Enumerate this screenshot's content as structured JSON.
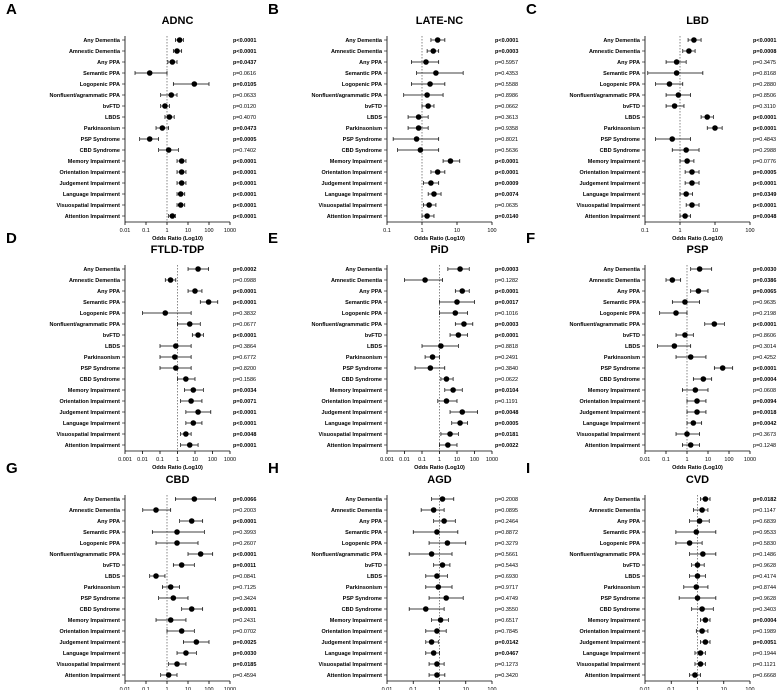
{
  "categories": [
    "Any Dementia",
    "Amnestic Dementia",
    "Any PPA",
    "Semantic PPA",
    "Logopenic PPA",
    "Nonfluent/agrammatic PPA",
    "bvFTD",
    "LBDS",
    "Parkinsonism",
    "PSP Syndrome",
    "CBD Syndrome",
    "Memory Impairment",
    "Orientation Impairment",
    "Judgement Impairment",
    "Language Impairment",
    "Visuospatial Impairment",
    "Attention Impairment"
  ],
  "xlabel": "Odds Ratio (Log10)",
  "chart_data": [
    {
      "type": "scatter",
      "panel_letter": "A",
      "title": "ADNC",
      "xlim": [
        0.01,
        1000
      ],
      "xticks": [
        "0.01",
        "0.1",
        "1",
        "10",
        "100",
        "1000"
      ],
      "or": [
        4,
        3,
        1.8,
        0.15,
        20,
        1.6,
        0.8,
        1.3,
        0.6,
        0.15,
        1.2,
        5,
        5,
        5,
        4.5,
        4.5,
        1.8
      ],
      "lo": [
        2.5,
        2,
        1.1,
        0.03,
        2,
        0.5,
        0.5,
        0.8,
        0.3,
        0.05,
        0.4,
        3,
        3,
        3,
        3,
        3,
        1.2
      ],
      "hi": [
        6,
        5,
        3,
        1,
        100,
        3,
        1.3,
        2.2,
        1.2,
        0.4,
        3.5,
        8,
        8,
        8,
        7,
        7,
        2.5
      ],
      "p": [
        "p<0.0001",
        "p<0.0001",
        "p=0.0437",
        "p=0.0616",
        "p=0.0105",
        "p=0.0633",
        "p=0.0120",
        "p=0.4070",
        "p=0.0473",
        "p=0.0005",
        "p=0.7402",
        "p<0.0001",
        "p<0.0001",
        "p<0.0001",
        "p<0.0001",
        "p<0.0001",
        "p<0.0001"
      ],
      "bold": [
        true,
        true,
        true,
        false,
        true,
        false,
        false,
        false,
        true,
        true,
        false,
        true,
        true,
        true,
        true,
        true,
        true
      ]
    },
    {
      "type": "scatter",
      "panel_letter": "B",
      "title": "LATE-NC",
      "xlim": [
        0.1,
        100
      ],
      "xticks": [
        "0.1",
        "1",
        "10",
        "100"
      ],
      "or": [
        2.8,
        2.1,
        1.3,
        2.5,
        1.7,
        1.4,
        1.5,
        0.8,
        0.8,
        0.7,
        0.9,
        6.5,
        2.8,
        1.8,
        2.2,
        1.6,
        1.4
      ],
      "lo": [
        1.8,
        1.4,
        0.5,
        0.7,
        0.5,
        0.3,
        1.0,
        0.4,
        0.4,
        0.15,
        0.2,
        4,
        1.8,
        1.1,
        1.5,
        1.1,
        1.0
      ],
      "hi": [
        4.5,
        3,
        3,
        15,
        4.5,
        4,
        2.2,
        1.5,
        1.5,
        3,
        3,
        12,
        4.5,
        3,
        3.5,
        2.5,
        2.2
      ],
      "p": [
        "p<0.0001",
        "p=0.0003",
        "p=0.5957",
        "p=0.4353",
        "p=0.5588",
        "p=0.8986",
        "p=0.0662",
        "p=0.3613",
        "p=0.9358",
        "p=0.8021",
        "p=0.5636",
        "p<0.0001",
        "p<0.0001",
        "p=0.0009",
        "p=0.0074",
        "p=0.0635",
        "p=0.0140"
      ],
      "bold": [
        true,
        true,
        false,
        false,
        false,
        false,
        false,
        false,
        false,
        false,
        false,
        true,
        true,
        true,
        true,
        false,
        true
      ]
    },
    {
      "type": "scatter",
      "panel_letter": "C",
      "title": "LBD",
      "xlim": [
        0.1,
        100
      ],
      "xticks": [
        "0.1",
        "1",
        "10",
        "100"
      ],
      "or": [
        2.5,
        1.8,
        0.8,
        0.8,
        0.5,
        0.9,
        0.7,
        6,
        10,
        0.6,
        1.5,
        1.6,
        2.2,
        2.2,
        1.5,
        2.2,
        1.4
      ],
      "lo": [
        1.7,
        1.2,
        0.4,
        0.12,
        0.2,
        0.4,
        0.4,
        4,
        6,
        0.2,
        0.6,
        1.0,
        1.4,
        1.4,
        1.0,
        1.5,
        1.0
      ],
      "hi": [
        4,
        2.7,
        1.5,
        4.5,
        1.2,
        2,
        1.3,
        9,
        16,
        2,
        3.5,
        2.5,
        3.5,
        3.5,
        2.3,
        3.5,
        2.0
      ],
      "p": [
        "p<0.0001",
        "p=0.0008",
        "p=0.3475",
        "p=0.8168",
        "p=0.2880",
        "p=0.8506",
        "p=0.3110",
        "p<0.0001",
        "p<0.0001",
        "p=0.4843",
        "p=0.2988",
        "p=0.0776",
        "p=0.0005",
        "p<0.0001",
        "p=0.0349",
        "p<0.0001",
        "p=0.0048"
      ],
      "bold": [
        true,
        true,
        false,
        false,
        false,
        false,
        false,
        true,
        true,
        false,
        false,
        false,
        true,
        true,
        true,
        true,
        true
      ]
    },
    {
      "type": "scatter",
      "panel_letter": "D",
      "title": "FTLD-TDP",
      "xlim": [
        0.001,
        1000
      ],
      "xticks": [
        "0.001",
        "0.01",
        "0.1",
        "1",
        "10",
        "100",
        "1000"
      ],
      "or": [
        15,
        0.4,
        10,
        60,
        0.2,
        5,
        15,
        0.8,
        0.7,
        0.8,
        3,
        8,
        6,
        15,
        8,
        3,
        5
      ],
      "lo": [
        4,
        0.2,
        4,
        20,
        0.01,
        1,
        7,
        0.1,
        0.1,
        0.1,
        1,
        2.5,
        1.5,
        3,
        3,
        1.5,
        1.5
      ],
      "hi": [
        60,
        0.8,
        25,
        200,
        6,
        20,
        30,
        6,
        6,
        6,
        10,
        30,
        25,
        80,
        25,
        6,
        15
      ],
      "p": [
        "p=0.0002",
        "p=0.0988",
        "p<0.0001",
        "p<0.0001",
        "p=0.3832",
        "p=0.0677",
        "p<0.0001",
        "p=0.3864",
        "p=0.6772",
        "p=0.8200",
        "p=0.1586",
        "p=0.0034",
        "p=0.0071",
        "p<0.0001",
        "p<0.0001",
        "p=0.0048",
        "p=0.0001"
      ],
      "bold": [
        true,
        false,
        true,
        true,
        false,
        false,
        true,
        false,
        false,
        false,
        false,
        true,
        true,
        true,
        true,
        true,
        true
      ]
    },
    {
      "type": "scatter",
      "panel_letter": "E",
      "title": "PiD",
      "xlim": [
        0.001,
        1000
      ],
      "xticks": [
        "0.001",
        "0.01",
        "0.1",
        "1",
        "10",
        "100",
        "1000"
      ],
      "or": [
        15,
        0.15,
        20,
        10,
        8,
        25,
        12,
        1.2,
        0.4,
        0.3,
        2.5,
        6,
        2.5,
        20,
        15,
        4,
        3
      ],
      "lo": [
        3,
        0.01,
        8,
        1,
        1,
        8,
        4,
        0.1,
        0.15,
        0.04,
        1.2,
        2,
        0.8,
        4,
        5,
        1.2,
        1
      ],
      "hi": [
        50,
        1.5,
        50,
        100,
        40,
        80,
        40,
        12,
        1,
        2,
        6,
        20,
        10,
        150,
        40,
        12,
        10
      ],
      "p": [
        "p=0.0003",
        "p=0.1282",
        "p<0.0001",
        "p=0.0017",
        "p=0.1016",
        "p=0.0003",
        "p<0.0001",
        "p=0.8818",
        "p=0.2491",
        "p=0.3840",
        "p=0.0622",
        "p=0.0104",
        "p=0.1191",
        "p=0.0048",
        "p=0.0005",
        "p=0.0181",
        "p=0.0022"
      ],
      "bold": [
        true,
        false,
        true,
        true,
        false,
        true,
        true,
        false,
        false,
        false,
        false,
        true,
        false,
        true,
        true,
        true,
        true
      ]
    },
    {
      "type": "scatter",
      "panel_letter": "F",
      "title": "PSP",
      "xlim": [
        0.01,
        1000
      ],
      "xticks": [
        "0.01",
        "0.1",
        "1",
        "10",
        "100",
        "1000"
      ],
      "or": [
        4,
        0.2,
        3.5,
        0.8,
        0.3,
        20,
        0.8,
        0.25,
        1.5,
        50,
        6,
        2.5,
        3,
        3,
        2,
        1,
        1.5
      ],
      "lo": [
        1.5,
        0.1,
        1.5,
        0.2,
        0.05,
        7,
        0.3,
        0.04,
        0.3,
        20,
        2,
        0.6,
        1,
        1,
        1,
        0.3,
        0.6
      ],
      "hi": [
        15,
        0.5,
        10,
        4,
        1,
        60,
        2,
        1.5,
        8,
        150,
        15,
        10,
        8,
        8,
        5,
        4,
        4
      ],
      "p": [
        "p=0.0030",
        "p=0.0386",
        "p=0.0065",
        "p=0.9635",
        "p=0.2198",
        "p<0.0001",
        "p=0.8606",
        "p=0.3014",
        "p=0.4252",
        "p<0.0001",
        "p=0.0004",
        "p=0.0608",
        "p=0.0094",
        "p=0.0018",
        "p=0.0042",
        "p=0.3673",
        "p=0.1248"
      ],
      "bold": [
        true,
        true,
        true,
        false,
        false,
        true,
        false,
        false,
        false,
        true,
        true,
        false,
        true,
        true,
        true,
        false,
        false
      ]
    },
    {
      "type": "scatter",
      "panel_letter": "G",
      "title": "CBD",
      "xlim": [
        0.01,
        1000
      ],
      "xticks": [
        "0.01",
        "0.1",
        "1",
        "10",
        "100",
        "1000"
      ],
      "or": [
        20,
        0.3,
        15,
        3,
        3,
        40,
        5,
        0.3,
        1.5,
        2,
        15,
        1.5,
        5,
        25,
        8,
        3,
        1.2
      ],
      "lo": [
        2.5,
        0.07,
        4,
        0.2,
        0.3,
        10,
        2,
        0.15,
        0.6,
        0.4,
        5,
        0.3,
        1,
        6,
        3,
        1.2,
        0.5
      ],
      "hi": [
        200,
        1.5,
        50,
        60,
        30,
        150,
        20,
        0.8,
        4,
        10,
        50,
        8,
        20,
        100,
        25,
        8,
        3
      ],
      "p": [
        "p=0.0066",
        "p=0.2003",
        "p<0.0001",
        "p=0.3993",
        "p=0.2607",
        "p<0.0001",
        "p=0.0011",
        "p=0.0841",
        "p=0.7125",
        "p=0.3424",
        "p<0.0001",
        "p=0.2431",
        "p=0.0702",
        "p=0.0025",
        "p=0.0030",
        "p=0.0185",
        "p=0.4594"
      ],
      "bold": [
        true,
        false,
        true,
        false,
        false,
        true,
        true,
        false,
        false,
        false,
        true,
        false,
        false,
        true,
        true,
        true,
        false
      ]
    },
    {
      "type": "scatter",
      "panel_letter": "H",
      "title": "AGD",
      "xlim": [
        0.01,
        100
      ],
      "xticks": [
        "0.01",
        "0.1",
        "1",
        "10",
        "100"
      ],
      "or": [
        1.3,
        0.6,
        1.5,
        0.8,
        2,
        0.5,
        1.3,
        0.8,
        0.9,
        1.8,
        0.3,
        1.1,
        0.8,
        0.5,
        0.6,
        0.8,
        0.8
      ],
      "lo": [
        0.5,
        0.2,
        0.6,
        0.1,
        0.4,
        0.07,
        0.6,
        0.3,
        0.3,
        0.4,
        0.07,
        0.5,
        0.3,
        0.3,
        0.3,
        0.4,
        0.4
      ],
      "hi": [
        3.5,
        1.5,
        4,
        5,
        10,
        3,
        2.5,
        2,
        3,
        8,
        1.5,
        2.2,
        1.8,
        0.9,
        1,
        1.5,
        1.6
      ],
      "p": [
        "p=0.2008",
        "p=0.0895",
        "p=0.2464",
        "p=0.8872",
        "p=0.3279",
        "p=0.5661",
        "p=0.5443",
        "p=0.6930",
        "p=0.9717",
        "p=0.4749",
        "p=0.3550",
        "p=0.6517",
        "p=0.7845",
        "p=0.0142",
        "p=0.0467",
        "p=0.1273",
        "p=0.3420"
      ],
      "bold": [
        false,
        false,
        false,
        false,
        false,
        false,
        false,
        false,
        false,
        false,
        false,
        false,
        false,
        true,
        true,
        false,
        false
      ]
    },
    {
      "type": "scatter",
      "panel_letter": "I",
      "title": "CVD",
      "xlim": [
        0.01,
        100
      ],
      "xticks": [
        "0.01",
        "0.1",
        "1",
        "10",
        "100"
      ],
      "or": [
        2,
        1.5,
        1.2,
        0.9,
        0.5,
        1.6,
        1,
        1,
        0.9,
        1,
        1.5,
        2,
        1.5,
        2,
        1.3,
        1.3,
        0.8
      ],
      "lo": [
        1.3,
        0.7,
        0.5,
        0.15,
        0.15,
        0.5,
        0.6,
        0.5,
        0.3,
        0.2,
        0.6,
        1.3,
        0.9,
        1.3,
        0.8,
        0.8,
        0.5
      ],
      "hi": [
        3,
        2.5,
        2.8,
        5,
        1.5,
        5,
        1.8,
        2,
        2.5,
        5,
        4,
        3,
        2.5,
        3,
        2,
        2,
        1.3
      ],
      "p": [
        "p=0.0182",
        "p=0.1147",
        "p=0.6839",
        "p=0.9533",
        "p=0.5830",
        "p=0.1486",
        "p=0.9628",
        "p=0.4174",
        "p=0.8744",
        "p=0.9628",
        "p=0.3403",
        "p=0.0004",
        "p=0.1989",
        "p=0.0051",
        "p=0.1944",
        "p=0.1121",
        "p=0.6668"
      ],
      "bold": [
        true,
        false,
        false,
        false,
        false,
        false,
        false,
        false,
        false,
        false,
        false,
        true,
        false,
        true,
        false,
        false,
        false
      ]
    }
  ]
}
